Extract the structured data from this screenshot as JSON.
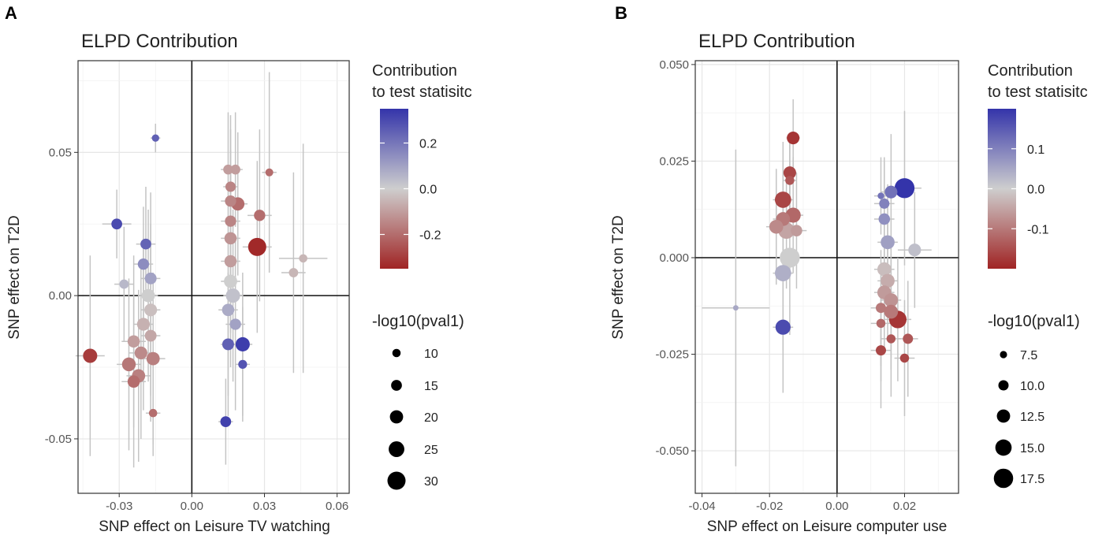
{
  "chart_data": [
    {
      "panel": "A",
      "type": "scatter",
      "title": "ELPD Contribution",
      "xlabel": "SNP effect on Leisure TV watching",
      "ylabel": "SNP effect on  T2D",
      "xlim": [
        -0.047,
        0.065
      ],
      "ylim": [
        -0.069,
        0.082
      ],
      "xticks": [
        -0.03,
        0.0,
        0.03,
        0.06
      ],
      "xtick_labels": [
        "-0.03",
        "0.00",
        "0.03",
        "0.06"
      ],
      "yticks": [
        -0.05,
        0.0,
        0.05
      ],
      "ytick_labels": [
        "-0.05",
        "0.00",
        "0.05"
      ],
      "grid": true,
      "color_legend": {
        "title": [
          "Contribution",
          "to test statisitc"
        ],
        "range": [
          -0.35,
          0.35
        ],
        "ticks": [
          0.2,
          0.0,
          -0.2
        ],
        "tick_labels": [
          "0.2",
          "0.0",
          "-0.2"
        ]
      },
      "size_legend": {
        "title": "-log10(pval1)",
        "values": [
          10,
          15,
          20,
          25,
          30
        ],
        "labels": [
          "10",
          "15",
          "20",
          "25",
          "30"
        ]
      },
      "points": [
        {
          "x": -0.015,
          "y": 0.055,
          "xerr": 0.002,
          "yerr": 0.005,
          "c": 0.25,
          "s": 8
        },
        {
          "x": -0.031,
          "y": 0.025,
          "xerr": 0.006,
          "yerr": 0.012,
          "c": 0.3,
          "s": 15
        },
        {
          "x": -0.019,
          "y": 0.018,
          "xerr": 0.004,
          "yerr": 0.02,
          "c": 0.24,
          "s": 15
        },
        {
          "x": -0.02,
          "y": 0.011,
          "xerr": 0.004,
          "yerr": 0.02,
          "c": 0.15,
          "s": 16
        },
        {
          "x": -0.028,
          "y": 0.004,
          "xerr": 0.004,
          "yerr": 0.02,
          "c": 0.05,
          "s": 12
        },
        {
          "x": -0.017,
          "y": 0.006,
          "xerr": 0.004,
          "yerr": 0.03,
          "c": 0.1,
          "s": 17
        },
        {
          "x": -0.018,
          "y": 0.0,
          "xerr": 0.004,
          "yerr": 0.03,
          "c": 0.0,
          "s": 20
        },
        {
          "x": -0.017,
          "y": -0.005,
          "xerr": 0.004,
          "yerr": 0.03,
          "c": -0.03,
          "s": 19
        },
        {
          "x": -0.02,
          "y": -0.01,
          "xerr": 0.004,
          "yerr": 0.03,
          "c": -0.06,
          "s": 19
        },
        {
          "x": -0.024,
          "y": -0.016,
          "xerr": 0.005,
          "yerr": 0.03,
          "c": -0.1,
          "s": 18
        },
        {
          "x": -0.017,
          "y": -0.014,
          "xerr": 0.004,
          "yerr": 0.03,
          "c": -0.08,
          "s": 17
        },
        {
          "x": -0.021,
          "y": -0.02,
          "xerr": 0.005,
          "yerr": 0.03,
          "c": -0.14,
          "s": 19
        },
        {
          "x": -0.016,
          "y": -0.022,
          "xerr": 0.005,
          "yerr": 0.03,
          "c": -0.16,
          "s": 20
        },
        {
          "x": -0.026,
          "y": -0.024,
          "xerr": 0.005,
          "yerr": 0.03,
          "c": -0.18,
          "s": 21
        },
        {
          "x": -0.022,
          "y": -0.028,
          "xerr": 0.005,
          "yerr": 0.03,
          "c": -0.16,
          "s": 20
        },
        {
          "x": -0.024,
          "y": -0.03,
          "xerr": 0.005,
          "yerr": 0.03,
          "c": -0.2,
          "s": 18
        },
        {
          "x": -0.042,
          "y": -0.021,
          "xerr": 0.006,
          "yerr": 0.035,
          "c": -0.3,
          "s": 22
        },
        {
          "x": -0.016,
          "y": -0.041,
          "xerr": 0.003,
          "yerr": 0.015,
          "c": -0.2,
          "s": 10
        },
        {
          "x": 0.015,
          "y": 0.044,
          "xerr": 0.003,
          "yerr": 0.02,
          "c": -0.1,
          "s": 13
        },
        {
          "x": 0.018,
          "y": 0.044,
          "xerr": 0.003,
          "yerr": 0.02,
          "c": -0.1,
          "s": 13
        },
        {
          "x": 0.032,
          "y": 0.043,
          "xerr": 0.003,
          "yerr": 0.035,
          "c": -0.2,
          "s": 9
        },
        {
          "x": 0.016,
          "y": 0.038,
          "xerr": 0.003,
          "yerr": 0.025,
          "c": -0.15,
          "s": 14
        },
        {
          "x": 0.016,
          "y": 0.033,
          "xerr": 0.004,
          "yerr": 0.025,
          "c": -0.15,
          "s": 16
        },
        {
          "x": 0.019,
          "y": 0.032,
          "xerr": 0.004,
          "yerr": 0.025,
          "c": -0.2,
          "s": 20
        },
        {
          "x": 0.016,
          "y": 0.026,
          "xerr": 0.004,
          "yerr": 0.025,
          "c": -0.15,
          "s": 16
        },
        {
          "x": 0.028,
          "y": 0.028,
          "xerr": 0.005,
          "yerr": 0.03,
          "c": -0.2,
          "s": 16
        },
        {
          "x": 0.016,
          "y": 0.02,
          "xerr": 0.004,
          "yerr": 0.025,
          "c": -0.12,
          "s": 18
        },
        {
          "x": 0.016,
          "y": 0.012,
          "xerr": 0.004,
          "yerr": 0.025,
          "c": -0.1,
          "s": 18
        },
        {
          "x": 0.027,
          "y": 0.017,
          "xerr": 0.006,
          "yerr": 0.03,
          "c": -0.34,
          "s": 30
        },
        {
          "x": 0.046,
          "y": 0.013,
          "xerr": 0.01,
          "yerr": 0.04,
          "c": -0.05,
          "s": 10
        },
        {
          "x": 0.042,
          "y": 0.008,
          "xerr": 0.005,
          "yerr": 0.035,
          "c": -0.05,
          "s": 12
        },
        {
          "x": 0.016,
          "y": 0.005,
          "xerr": 0.004,
          "yerr": 0.03,
          "c": 0.0,
          "s": 20
        },
        {
          "x": 0.017,
          "y": 0.0,
          "xerr": 0.004,
          "yerr": 0.03,
          "c": 0.03,
          "s": 22
        },
        {
          "x": 0.015,
          "y": -0.005,
          "xerr": 0.004,
          "yerr": 0.03,
          "c": 0.08,
          "s": 18
        },
        {
          "x": 0.018,
          "y": -0.01,
          "xerr": 0.004,
          "yerr": 0.03,
          "c": 0.1,
          "s": 16
        },
        {
          "x": 0.015,
          "y": -0.017,
          "xerr": 0.003,
          "yerr": 0.025,
          "c": 0.25,
          "s": 17
        },
        {
          "x": 0.021,
          "y": -0.017,
          "xerr": 0.004,
          "yerr": 0.025,
          "c": 0.33,
          "s": 22
        },
        {
          "x": 0.021,
          "y": -0.024,
          "xerr": 0.003,
          "yerr": 0.02,
          "c": 0.28,
          "s": 11
        },
        {
          "x": 0.014,
          "y": -0.044,
          "xerr": 0.003,
          "yerr": 0.015,
          "c": 0.32,
          "s": 15
        }
      ]
    },
    {
      "panel": "B",
      "type": "scatter",
      "title": "ELPD Contribution",
      "xlabel": "SNP effect on Leisure computer use",
      "ylabel": "SNP effect on  T2D",
      "xlim": [
        -0.042,
        0.036
      ],
      "ylim": [
        -0.061,
        0.051
      ],
      "xticks": [
        -0.04,
        -0.02,
        0.0,
        0.02
      ],
      "xtick_labels": [
        "-0.04",
        "-0.02",
        "0.00",
        "0.02"
      ],
      "yticks": [
        0.05,
        0.025,
        0.0,
        -0.025,
        -0.05
      ],
      "ytick_labels": [
        "0.050",
        "0.025",
        "0.000",
        "-0.025",
        "-0.050"
      ],
      "grid": true,
      "color_legend": {
        "title": [
          "Contribution",
          "to test statisitc"
        ],
        "range": [
          -0.2,
          0.2
        ],
        "ticks": [
          0.1,
          0.0,
          -0.1
        ],
        "tick_labels": [
          "0.1",
          "0.0",
          "-0.1"
        ]
      },
      "size_legend": {
        "title": "-log10(pval1)",
        "values": [
          7.5,
          10.0,
          12.5,
          15.0,
          17.5
        ],
        "labels": [
          "7.5",
          "10.0",
          "12.5",
          "15.0",
          "17.5"
        ]
      },
      "points": [
        {
          "x": -0.013,
          "y": 0.031,
          "xerr": 0.002,
          "yerr": 0.01,
          "c": -0.18,
          "s": 12
        },
        {
          "x": -0.014,
          "y": 0.022,
          "xerr": 0.002,
          "yerr": 0.01,
          "c": -0.16,
          "s": 12
        },
        {
          "x": -0.014,
          "y": 0.02,
          "xerr": 0.002,
          "yerr": 0.01,
          "c": -0.14,
          "s": 9
        },
        {
          "x": -0.016,
          "y": 0.015,
          "xerr": 0.003,
          "yerr": 0.015,
          "c": -0.16,
          "s": 15
        },
        {
          "x": -0.013,
          "y": 0.011,
          "xerr": 0.003,
          "yerr": 0.015,
          "c": -0.12,
          "s": 14
        },
        {
          "x": -0.016,
          "y": 0.01,
          "xerr": 0.003,
          "yerr": 0.015,
          "c": -0.1,
          "s": 13
        },
        {
          "x": -0.018,
          "y": 0.008,
          "xerr": 0.003,
          "yerr": 0.015,
          "c": -0.08,
          "s": 13
        },
        {
          "x": -0.015,
          "y": 0.007,
          "xerr": 0.003,
          "yerr": 0.015,
          "c": -0.05,
          "s": 15
        },
        {
          "x": -0.012,
          "y": 0.007,
          "xerr": 0.003,
          "yerr": 0.015,
          "c": -0.06,
          "s": 11
        },
        {
          "x": -0.014,
          "y": 0.0,
          "xerr": 0.003,
          "yerr": 0.02,
          "c": 0.0,
          "s": 18
        },
        {
          "x": -0.016,
          "y": -0.004,
          "xerr": 0.003,
          "yerr": 0.02,
          "c": 0.04,
          "s": 15
        },
        {
          "x": -0.016,
          "y": -0.018,
          "xerr": 0.003,
          "yerr": 0.017,
          "c": 0.17,
          "s": 14
        },
        {
          "x": -0.03,
          "y": -0.013,
          "xerr": 0.01,
          "yerr": 0.041,
          "c": 0.05,
          "s": 6
        },
        {
          "x": 0.02,
          "y": 0.018,
          "xerr": 0.005,
          "yerr": 0.02,
          "c": 0.2,
          "s": 18
        },
        {
          "x": 0.016,
          "y": 0.017,
          "xerr": 0.003,
          "yerr": 0.015,
          "c": 0.12,
          "s": 12
        },
        {
          "x": 0.013,
          "y": 0.016,
          "xerr": 0.002,
          "yerr": 0.01,
          "c": 0.12,
          "s": 7
        },
        {
          "x": 0.014,
          "y": 0.014,
          "xerr": 0.003,
          "yerr": 0.012,
          "c": 0.1,
          "s": 10
        },
        {
          "x": 0.014,
          "y": 0.01,
          "xerr": 0.003,
          "yerr": 0.015,
          "c": 0.08,
          "s": 11
        },
        {
          "x": 0.015,
          "y": 0.004,
          "xerr": 0.003,
          "yerr": 0.015,
          "c": 0.06,
          "s": 13
        },
        {
          "x": 0.023,
          "y": 0.002,
          "xerr": 0.005,
          "yerr": 0.015,
          "c": 0.02,
          "s": 12
        },
        {
          "x": 0.014,
          "y": -0.003,
          "xerr": 0.003,
          "yerr": 0.015,
          "c": -0.02,
          "s": 13
        },
        {
          "x": 0.015,
          "y": -0.006,
          "xerr": 0.003,
          "yerr": 0.015,
          "c": -0.04,
          "s": 13
        },
        {
          "x": 0.014,
          "y": -0.009,
          "xerr": 0.003,
          "yerr": 0.015,
          "c": -0.06,
          "s": 13
        },
        {
          "x": 0.016,
          "y": -0.011,
          "xerr": 0.003,
          "yerr": 0.015,
          "c": -0.07,
          "s": 13
        },
        {
          "x": 0.013,
          "y": -0.013,
          "xerr": 0.003,
          "yerr": 0.015,
          "c": -0.1,
          "s": 10
        },
        {
          "x": 0.016,
          "y": -0.014,
          "xerr": 0.003,
          "yerr": 0.015,
          "c": -0.1,
          "s": 13
        },
        {
          "x": 0.018,
          "y": -0.016,
          "xerr": 0.004,
          "yerr": 0.016,
          "c": -0.18,
          "s": 16
        },
        {
          "x": 0.013,
          "y": -0.017,
          "xerr": 0.003,
          "yerr": 0.015,
          "c": -0.12,
          "s": 9
        },
        {
          "x": 0.016,
          "y": -0.021,
          "xerr": 0.003,
          "yerr": 0.015,
          "c": -0.14,
          "s": 9
        },
        {
          "x": 0.021,
          "y": -0.021,
          "xerr": 0.003,
          "yerr": 0.015,
          "c": -0.14,
          "s": 10
        },
        {
          "x": 0.013,
          "y": -0.024,
          "xerr": 0.003,
          "yerr": 0.015,
          "c": -0.16,
          "s": 10
        },
        {
          "x": 0.02,
          "y": -0.026,
          "xerr": 0.003,
          "yerr": 0.015,
          "c": -0.16,
          "s": 9
        }
      ]
    }
  ]
}
